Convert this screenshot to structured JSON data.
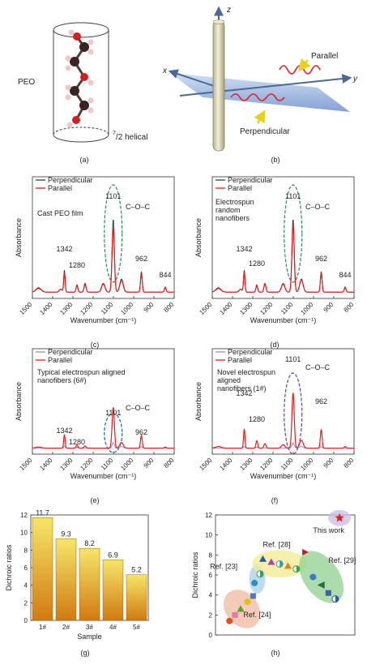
{
  "panel_labels": [
    "(a)",
    "(b)",
    "(c)",
    "(d)",
    "(e)",
    "(f)",
    "(g)",
    "(h)"
  ],
  "panel_a": {
    "label_peo": "PEO",
    "helix_num": "7",
    "helix_label": "/2 helical"
  },
  "panel_b": {
    "axis_x": "x",
    "axis_y": "y",
    "axis_z": "z",
    "label_parallel": "Parallel",
    "label_perpendicular": "Perpendicular"
  },
  "colors": {
    "perpendicular": "#3a3a3a",
    "parallel": "#e02020",
    "perp_faded": "#9a8fb8",
    "bar_top": "#f6e66a",
    "bar_bottom": "#d07a10",
    "circle_green": "#2e8b57",
    "circle_blue": "#1f5fbf",
    "circle_purple": "#6a3d9a"
  },
  "chart_data": [
    {
      "panel": "(c)",
      "type": "line",
      "legend": [
        "Perpendicular",
        "Parallel"
      ],
      "annotation": "Cast PEO film",
      "group_label": "C–O–C",
      "xlabel": "Wavenumber (cm⁻¹)",
      "ylabel": "Absorbance",
      "xlim": [
        1500,
        800
      ],
      "xticks": [
        "1500",
        "1400",
        "1300",
        "1200",
        "1100",
        "1000",
        "900",
        "800"
      ],
      "peak_labels": [
        {
          "text": "1342",
          "x": 1342
        },
        {
          "text": "1280",
          "x": 1280
        },
        {
          "text": "1101",
          "x": 1101
        },
        {
          "text": "962",
          "x": 962
        },
        {
          "text": "844",
          "x": 844
        }
      ],
      "series": [
        {
          "name": "Perpendicular",
          "peaks": [
            [
              1470,
              0.06,
              18
            ],
            [
              1360,
              0.04,
              10
            ],
            [
              1342,
              0.3,
              5
            ],
            [
              1280,
              0.1,
              6
            ],
            [
              1240,
              0.12,
              7
            ],
            [
              1150,
              0.12,
              12
            ],
            [
              1101,
              1.0,
              8
            ],
            [
              1060,
              0.18,
              12
            ],
            [
              962,
              0.28,
              6
            ],
            [
              844,
              0.07,
              6
            ]
          ]
        },
        {
          "name": "Parallel",
          "peaks": [
            [
              1470,
              0.05,
              18
            ],
            [
              1360,
              0.04,
              10
            ],
            [
              1342,
              0.27,
              5
            ],
            [
              1280,
              0.09,
              6
            ],
            [
              1240,
              0.1,
              7
            ],
            [
              1150,
              0.11,
              12
            ],
            [
              1101,
              0.88,
              8
            ],
            [
              1060,
              0.16,
              12
            ],
            [
              962,
              0.25,
              6
            ],
            [
              844,
              0.06,
              6
            ]
          ]
        }
      ]
    },
    {
      "panel": "(d)",
      "type": "line",
      "legend": [
        "Perpendicular",
        "Parallel"
      ],
      "annotation": "Electrospun random nanofibers",
      "group_label": "C–O–C",
      "xlabel": "Wavenumber (cm⁻¹)",
      "ylabel": "Absorbance",
      "xlim": [
        1500,
        800
      ],
      "xticks": [
        "1500",
        "1400",
        "1300",
        "1200",
        "1100",
        "1000",
        "900",
        "800"
      ],
      "peak_labels": [
        {
          "text": "1342",
          "x": 1342
        },
        {
          "text": "1280",
          "x": 1280
        },
        {
          "text": "1101",
          "x": 1101
        },
        {
          "text": "962",
          "x": 962
        },
        {
          "text": "844",
          "x": 844
        }
      ],
      "series": [
        {
          "name": "Perpendicular",
          "peaks": [
            [
              1470,
              0.06,
              18
            ],
            [
              1360,
              0.04,
              10
            ],
            [
              1342,
              0.3,
              5
            ],
            [
              1280,
              0.1,
              6
            ],
            [
              1240,
              0.12,
              7
            ],
            [
              1150,
              0.12,
              12
            ],
            [
              1101,
              1.0,
              8
            ],
            [
              1060,
              0.18,
              12
            ],
            [
              962,
              0.28,
              6
            ],
            [
              844,
              0.07,
              6
            ]
          ]
        },
        {
          "name": "Parallel",
          "peaks": [
            [
              1470,
              0.05,
              18
            ],
            [
              1360,
              0.04,
              10
            ],
            [
              1342,
              0.28,
              5
            ],
            [
              1280,
              0.09,
              6
            ],
            [
              1240,
              0.11,
              7
            ],
            [
              1150,
              0.11,
              12
            ],
            [
              1101,
              0.92,
              8
            ],
            [
              1060,
              0.17,
              12
            ],
            [
              962,
              0.26,
              6
            ],
            [
              844,
              0.06,
              6
            ]
          ]
        }
      ]
    },
    {
      "panel": "(e)",
      "type": "line",
      "legend": [
        "Perpendicular",
        "Parallel"
      ],
      "annotation": "Typical electrospun aligned nanofibers (6#)",
      "group_label": "C–O–C",
      "xlabel": "Wavenumber (cm⁻¹)",
      "ylabel": "Absorbance",
      "xlim": [
        1500,
        800
      ],
      "xticks": [
        "1500",
        "1400",
        "1300",
        "1200",
        "1100",
        "1000",
        "900",
        "800"
      ],
      "peak_labels": [
        {
          "text": "1342",
          "x": 1342
        },
        {
          "text": "1280",
          "x": 1280
        },
        {
          "text": "1101",
          "x": 1101
        },
        {
          "text": "962",
          "x": 962
        }
      ],
      "series": [
        {
          "name": "Perpendicular",
          "peaks": [
            [
              1342,
              0.04,
              5
            ],
            [
              1280,
              0.02,
              6
            ],
            [
              1101,
              0.1,
              8
            ],
            [
              1060,
              0.03,
              12
            ],
            [
              962,
              0.03,
              6
            ]
          ]
        },
        {
          "name": "Parallel",
          "peaks": [
            [
              1470,
              0.02,
              18
            ],
            [
              1342,
              0.24,
              5
            ],
            [
              1280,
              0.06,
              6
            ],
            [
              1240,
              0.04,
              7
            ],
            [
              1101,
              0.72,
              8
            ],
            [
              1060,
              0.1,
              12
            ],
            [
              962,
              0.22,
              6
            ],
            [
              844,
              0.02,
              6
            ]
          ]
        }
      ]
    },
    {
      "panel": "(f)",
      "type": "line",
      "legend": [
        "Perpendicular",
        "Parallel"
      ],
      "annotation": "Novel electrospun aligned nanofibers (1#)",
      "group_label": "C–O–C",
      "xlabel": "Wavenumber (cm⁻¹)",
      "ylabel": "Absorbance",
      "xlim": [
        1500,
        800
      ],
      "xticks": [
        "1500",
        "1400",
        "1300",
        "1200",
        "1100",
        "1000",
        "900",
        "800"
      ],
      "peak_labels": [
        {
          "text": "1342",
          "x": 1342
        },
        {
          "text": "1280",
          "x": 1280
        },
        {
          "text": "1101",
          "x": 1101
        },
        {
          "text": "962",
          "x": 962
        }
      ],
      "series": [
        {
          "name": "Perpendicular",
          "peaks": [
            [
              1342,
              0.03,
              5
            ],
            [
              1280,
              0.02,
              6
            ],
            [
              1101,
              0.09,
              8
            ],
            [
              1060,
              0.03,
              12
            ],
            [
              962,
              0.03,
              6
            ]
          ]
        },
        {
          "name": "Parallel",
          "peaks": [
            [
              1470,
              0.03,
              18
            ],
            [
              1342,
              0.34,
              5
            ],
            [
              1280,
              0.13,
              6
            ],
            [
              1240,
              0.08,
              7
            ],
            [
              1150,
              0.06,
              12
            ],
            [
              1101,
              0.98,
              8
            ],
            [
              1060,
              0.14,
              12
            ],
            [
              962,
              0.33,
              6
            ],
            [
              844,
              0.03,
              6
            ]
          ]
        }
      ]
    },
    {
      "panel": "(g)",
      "type": "bar",
      "categories": [
        "1#",
        "2#",
        "3#",
        "4#",
        "5#"
      ],
      "values": [
        11.7,
        9.3,
        8.2,
        6.9,
        5.2
      ],
      "value_labels": [
        "11.7",
        "9.3",
        "8.2",
        "6.9",
        "5.2"
      ],
      "xlabel": "Sample",
      "ylabel": "Dichroic ratios",
      "ylim": [
        0,
        12
      ],
      "yticks": [
        "0",
        "2",
        "4",
        "6",
        "8",
        "10",
        "12"
      ]
    },
    {
      "panel": "(h)",
      "type": "scatter",
      "ylabel": "Dichroic ratios",
      "ylim": [
        0,
        12
      ],
      "yticks": [
        "0",
        "2",
        "4",
        "6",
        "8",
        "10",
        "12"
      ],
      "groups": [
        {
          "name": "Ref. [24]",
          "bubble": "#f0b8a0",
          "points": [
            {
              "x": 1.0,
              "y": 1.4,
              "c": "#e05020",
              "m": "circle"
            },
            {
              "x": 1.4,
              "y": 2.0,
              "c": "#e07aa0",
              "m": "square"
            },
            {
              "x": 1.8,
              "y": 2.6,
              "c": "#60a030",
              "m": "triangle"
            },
            {
              "x": 2.3,
              "y": 3.3,
              "c": "#e0c020",
              "m": "circle"
            },
            {
              "x": 2.7,
              "y": 3.9,
              "c": "#4a7acc",
              "m": "square"
            }
          ]
        },
        {
          "name": "Ref. [23]",
          "bubble": "#a8d0e8",
          "points": [
            {
              "x": 2.8,
              "y": 5.2,
              "c": "#3090c0",
              "m": "circle"
            },
            {
              "x": 3.2,
              "y": 6.1,
              "c": "#30a060",
              "m": "half"
            }
          ]
        },
        {
          "name": "Ref. [28]",
          "bubble": "#f2ec90",
          "points": [
            {
              "x": 3.4,
              "y": 7.6,
              "c": "#2a5aa0",
              "m": "triangle"
            },
            {
              "x": 4.0,
              "y": 7.3,
              "c": "#b040b0",
              "m": "triangle"
            },
            {
              "x": 4.6,
              "y": 7.1,
              "c": "#30a0a0",
              "m": "half"
            },
            {
              "x": 5.2,
              "y": 6.9,
              "c": "#e08020",
              "m": "triangle"
            },
            {
              "x": 5.8,
              "y": 6.6,
              "c": "#40a040",
              "m": "half"
            }
          ]
        },
        {
          "name": "Ref. [29]",
          "bubble": "#90d090",
          "points": [
            {
              "x": 6.4,
              "y": 8.2,
              "c": "#c02020",
              "m": "flag"
            },
            {
              "x": 7.0,
              "y": 5.8,
              "c": "#3a7acc",
              "m": "circle"
            },
            {
              "x": 7.6,
              "y": 5.0,
              "c": "#207040",
              "m": "tri-left"
            },
            {
              "x": 8.1,
              "y": 4.2,
              "c": "#4060a0",
              "m": "square"
            },
            {
              "x": 8.6,
              "y": 3.6,
              "c": "#2a5aa0",
              "m": "half"
            }
          ]
        },
        {
          "name": "This work",
          "bubble": "#cbbde6",
          "points": [
            {
              "x": 8.9,
              "y": 11.7,
              "c": "#e02020",
              "m": "star"
            }
          ]
        }
      ]
    }
  ]
}
